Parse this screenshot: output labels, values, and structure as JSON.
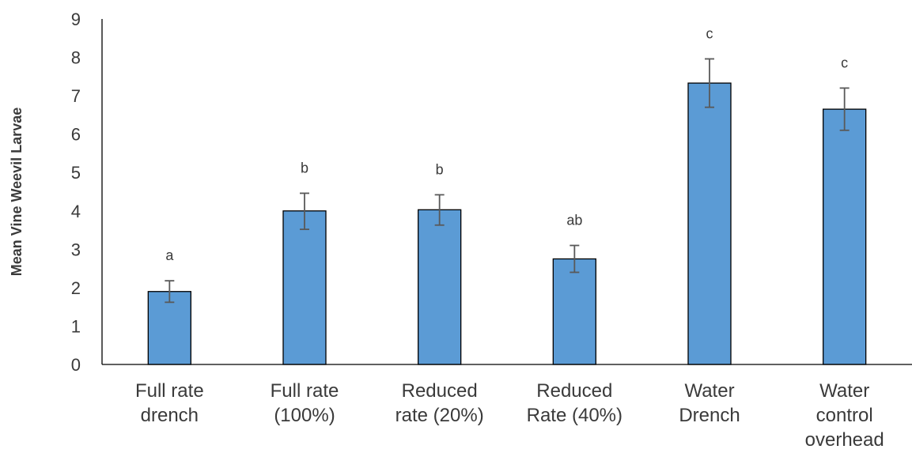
{
  "chart_data": {
    "type": "bar",
    "title": "",
    "xlabel": "",
    "ylabel": "Mean Vine Weevil Larvae",
    "ylim": [
      0,
      9
    ],
    "yticks": [
      0,
      1,
      2,
      3,
      4,
      5,
      6,
      7,
      8,
      9
    ],
    "grid": false,
    "legend": "none",
    "bar_color": "#5b9bd5",
    "bar_edge_color": "#000000",
    "error_bar_color": "#595959",
    "categories": [
      [
        "Full rate",
        "drench"
      ],
      [
        "Full rate",
        "(100%)"
      ],
      [
        "Reduced",
        "rate (20%)"
      ],
      [
        "Reduced",
        "Rate  (40%)"
      ],
      [
        "Water",
        "Drench"
      ],
      [
        "Water",
        "control",
        "overhead"
      ]
    ],
    "values": [
      1.9,
      4.0,
      4.03,
      2.75,
      7.33,
      6.65
    ],
    "error_low": [
      1.62,
      3.52,
      3.63,
      2.4,
      6.7,
      6.1
    ],
    "error_high": [
      2.18,
      4.46,
      4.42,
      3.1,
      7.96,
      7.2
    ],
    "significance_labels": [
      "a",
      "b",
      "b",
      "ab",
      "c",
      "c"
    ]
  }
}
